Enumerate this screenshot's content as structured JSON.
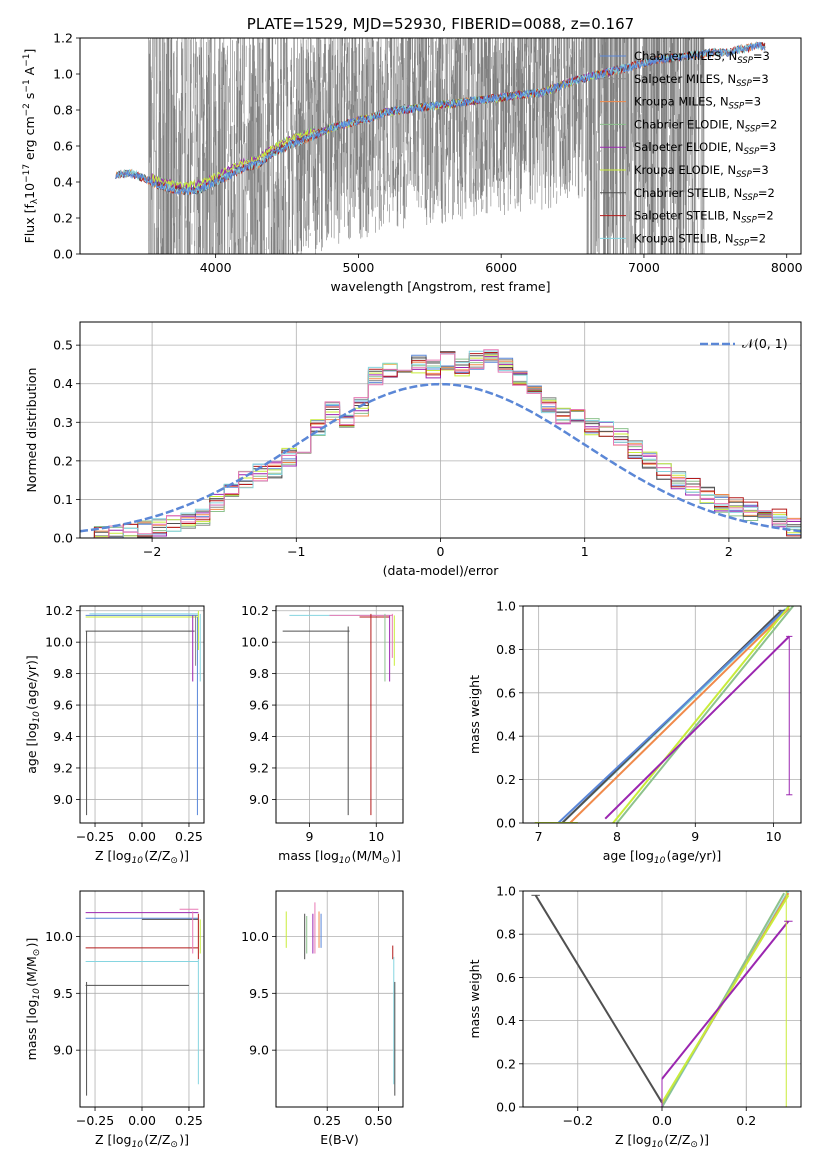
{
  "colors": {
    "Chabrier MILES": "#5a87d9",
    "Salpeter MILES": "#8b8b8b",
    "Kroupa MILES": "#f08a4b",
    "Chabrier ELODIE": "#8dc28d",
    "Salpeter ELODIE": "#9b26b0",
    "Kroupa ELODIE": "#c9ec3a",
    "Chabrier STELIB": "#505050",
    "Salpeter STELIB": "#b31b1b",
    "Kroupa STELIB": "#86d5e0",
    "Extra pink": "#e87ab5",
    "Extra blue": "#6f7fd0",
    "Observed spectrum": "#808080",
    "Normal": "#5b87d6"
  },
  "chart_data": [
    {
      "id": "spectrum",
      "type": "line",
      "title": "PLATE=1529, MJD=52930, FIBERID=0088, z=0.167",
      "xlabel": "wavelength [Angstrom, rest frame]",
      "ylabel": "Flux [f$_\\lambda$10$^{-17}$ erg cm$^{-2}$ s$^{-1}$ A$^{-1}$]",
      "ylabel_parts": [
        "Flux [f",
        "λ",
        "10",
        "−17",
        " erg cm",
        "−2",
        " s",
        "−1",
        " A",
        "−1",
        "]"
      ],
      "xlim": [
        3050,
        8100
      ],
      "ylim": [
        0,
        1.2
      ],
      "xticks": [
        4000,
        5000,
        6000,
        7000,
        8000
      ],
      "yticks": [
        0.0,
        0.2,
        0.4,
        0.6,
        0.8,
        1.0,
        1.2
      ],
      "xtick_labels": [
        "4000",
        "5000",
        "6000",
        "7000",
        "8000"
      ],
      "ytick_labels": [
        "0.0",
        "0.2",
        "0.4",
        "0.6",
        "0.8",
        "1.0",
        "1.2"
      ],
      "legend": [
        {
          "name": "Chabrier MILES",
          "label": "Chabrier MILES, N",
          "sub": "SSP",
          "suffix": "=3"
        },
        {
          "name": "Salpeter MILES",
          "label": "Salpeter MILES, N",
          "sub": "SSP",
          "suffix": "=3"
        },
        {
          "name": "Kroupa MILES",
          "label": "Kroupa MILES, N",
          "sub": "SSP",
          "suffix": "=3"
        },
        {
          "name": "Chabrier ELODIE",
          "label": "Chabrier ELODIE, N",
          "sub": "SSP",
          "suffix": "=2"
        },
        {
          "name": "Salpeter ELODIE",
          "label": "Salpeter ELODIE, N",
          "sub": "SSP",
          "suffix": "=3"
        },
        {
          "name": "Kroupa ELODIE",
          "label": "Kroupa ELODIE, N",
          "sub": "SSP",
          "suffix": "=3"
        },
        {
          "name": "Chabrier STELIB",
          "label": "Chabrier STELIB, N",
          "sub": "SSP",
          "suffix": "=2"
        },
        {
          "name": "Salpeter STELIB",
          "label": "Salpeter STELIB, N",
          "sub": "SSP",
          "suffix": "=2"
        },
        {
          "name": "Kroupa STELIB",
          "label": "Kroupa STELIB, N",
          "sub": "SSP",
          "suffix": "=2"
        }
      ],
      "model_continuum": [
        [
          3300,
          0.44
        ],
        [
          3400,
          0.45
        ],
        [
          3500,
          0.42
        ],
        [
          3600,
          0.38
        ],
        [
          3700,
          0.36
        ],
        [
          3800,
          0.35
        ],
        [
          3900,
          0.36
        ],
        [
          4000,
          0.4
        ],
        [
          4100,
          0.44
        ],
        [
          4200,
          0.48
        ],
        [
          4300,
          0.5
        ],
        [
          4400,
          0.56
        ],
        [
          4500,
          0.6
        ],
        [
          4600,
          0.63
        ],
        [
          4700,
          0.66
        ],
        [
          4800,
          0.7
        ],
        [
          4900,
          0.72
        ],
        [
          5000,
          0.74
        ],
        [
          5100,
          0.76
        ],
        [
          5200,
          0.79
        ],
        [
          5300,
          0.8
        ],
        [
          5400,
          0.81
        ],
        [
          5500,
          0.82
        ],
        [
          5600,
          0.83
        ],
        [
          5700,
          0.84
        ],
        [
          5800,
          0.85
        ],
        [
          5900,
          0.86
        ],
        [
          6000,
          0.87
        ],
        [
          6100,
          0.88
        ],
        [
          6200,
          0.89
        ],
        [
          6300,
          0.9
        ],
        [
          6400,
          0.93
        ],
        [
          6500,
          0.96
        ],
        [
          6600,
          0.98
        ],
        [
          6700,
          1.0
        ],
        [
          6800,
          1.02
        ],
        [
          6900,
          1.04
        ],
        [
          7000,
          1.06
        ],
        [
          7100,
          1.08
        ],
        [
          7200,
          1.09
        ],
        [
          7300,
          1.1
        ],
        [
          7400,
          1.11
        ],
        [
          7500,
          1.12
        ],
        [
          7600,
          1.12
        ],
        [
          7700,
          1.14
        ],
        [
          7800,
          1.16
        ],
        [
          7850,
          1.15
        ]
      ]
    },
    {
      "id": "residuals",
      "type": "histogram",
      "xlabel": "(data-model)/error",
      "ylabel": "Normed distribution",
      "xlim": [
        -2.5,
        2.5
      ],
      "ylim": [
        0,
        0.56
      ],
      "xticks": [
        -2,
        -1,
        0,
        1,
        2
      ],
      "yticks": [
        0.0,
        0.1,
        0.2,
        0.3,
        0.4,
        0.5
      ],
      "xtick_labels": [
        "−2",
        "−1",
        "0",
        "1",
        "2"
      ],
      "ytick_labels": [
        "0.0",
        "0.1",
        "0.2",
        "0.3",
        "0.4",
        "0.5"
      ],
      "legend_label": "𝒩(0, 1)",
      "grid": true,
      "bin_width": 0.1,
      "bin_start": -2.5,
      "base_hist": [
        0.0,
        0.005,
        0.01,
        0.015,
        0.02,
        0.03,
        0.035,
        0.045,
        0.05,
        0.09,
        0.12,
        0.15,
        0.17,
        0.18,
        0.21,
        0.22,
        0.29,
        0.33,
        0.3,
        0.34,
        0.42,
        0.44,
        0.43,
        0.45,
        0.44,
        0.46,
        0.44,
        0.46,
        0.48,
        0.45,
        0.41,
        0.37,
        0.34,
        0.32,
        0.31,
        0.29,
        0.28,
        0.26,
        0.23,
        0.2,
        0.17,
        0.15,
        0.13,
        0.11,
        0.09,
        0.08,
        0.07,
        0.06,
        0.05,
        0.03
      ]
    },
    {
      "id": "age-vs-Z",
      "type": "scatter",
      "xlabel": "Z [log$_{10}$(Z/Z$_\\odot$)]",
      "ylabel": "age  [log$_{10}$(age/yr)]",
      "xlim": [
        -0.33,
        0.33
      ],
      "ylim": [
        8.85,
        10.23
      ],
      "xticks": [
        -0.25,
        0.0,
        0.25
      ],
      "yticks": [
        9.0,
        9.2,
        9.4,
        9.6,
        9.8,
        10.0,
        10.2
      ],
      "xtick_labels": [
        "−0.25",
        "0.00",
        "0.25"
      ],
      "ytick_labels": [
        "9.0",
        "9.2",
        "9.4",
        "9.6",
        "9.8",
        "10.0",
        "10.2"
      ]
    },
    {
      "id": "age-vs-mass",
      "type": "scatter",
      "xlabel": "mass [log$_{10}$(M/M$_\\odot$)]",
      "ylabel": "",
      "xlim": [
        8.5,
        10.4
      ],
      "ylim": [
        8.85,
        10.23
      ],
      "xticks": [
        9,
        10
      ],
      "yticks": [
        9.0,
        9.2,
        9.4,
        9.6,
        9.8,
        10.0,
        10.2
      ],
      "xtick_labels": [
        "9",
        "10"
      ],
      "ytick_labels": [
        "9.0",
        "9.2",
        "9.4",
        "9.6",
        "9.8",
        "10.0",
        "10.2"
      ]
    },
    {
      "id": "massweight-vs-age",
      "type": "line",
      "xlabel": "age  [log$_{10}$(age/yr)]",
      "ylabel": "mass weight",
      "xlim": [
        6.8,
        10.35
      ],
      "ylim": [
        0,
        1.0
      ],
      "xticks": [
        7,
        8,
        9,
        10
      ],
      "yticks": [
        0.0,
        0.2,
        0.4,
        0.6,
        0.8,
        1.0
      ],
      "xtick_labels": [
        "7",
        "8",
        "9",
        "10"
      ],
      "ytick_labels": [
        "0.0",
        "0.2",
        "0.4",
        "0.6",
        "0.8",
        "1.0"
      ]
    },
    {
      "id": "mass-vs-Z",
      "type": "scatter",
      "xlabel": "Z [log$_{10}$(Z/Z$_\\odot$)]",
      "ylabel": "mass [log$_{10}$(M/M$_\\odot$)]",
      "xlim": [
        -0.33,
        0.33
      ],
      "ylim": [
        8.5,
        10.4
      ],
      "xticks": [
        -0.25,
        0.0,
        0.25
      ],
      "yticks": [
        9.0,
        9.5,
        10.0
      ],
      "xtick_labels": [
        "−0.25",
        "0.00",
        "0.25"
      ],
      "ytick_labels": [
        "9.0",
        "9.5",
        "10.0"
      ]
    },
    {
      "id": "mass-vs-ebv",
      "type": "scatter",
      "xlabel": "E(B-V)",
      "ylabel": "",
      "xlim": [
        0.0,
        0.62
      ],
      "ylim": [
        8.5,
        10.4
      ],
      "xticks": [
        0.25,
        0.5
      ],
      "yticks": [
        9.0,
        9.5,
        10.0
      ],
      "xtick_labels": [
        "0.25",
        "0.50"
      ],
      "ytick_labels": [
        "9.0",
        "9.5",
        "10.0"
      ]
    },
    {
      "id": "massweight-vs-Z",
      "type": "line",
      "xlabel": "Z [log$_{10}$(Z/Z$_\\odot$)]",
      "ylabel": "mass weight",
      "xlim": [
        -0.33,
        0.33
      ],
      "ylim": [
        0,
        1.0
      ],
      "xticks": [
        -0.2,
        0.0,
        0.2
      ],
      "yticks": [
        0.0,
        0.2,
        0.4,
        0.6,
        0.8,
        1.0
      ],
      "xtick_labels": [
        "−0.2",
        "0.0",
        "0.2"
      ],
      "ytick_labels": [
        "0.0",
        "0.2",
        "0.4",
        "0.6",
        "0.8",
        "1.0"
      ]
    }
  ]
}
